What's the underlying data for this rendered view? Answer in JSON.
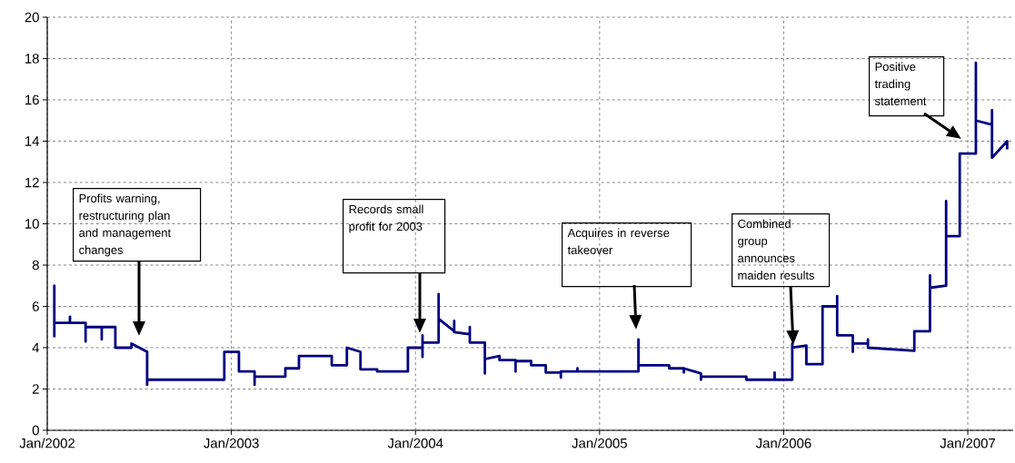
{
  "chart_data": {
    "type": "line",
    "x": [
      "2002-01-15",
      "2002-01-15",
      "2002-01-15",
      "2002-02-15",
      "2002-02-15",
      "2002-02-15",
      "2002-03-18",
      "2002-03-18",
      "2002-03-18",
      "2002-04-19",
      "2002-04-19",
      "2002-04-19",
      "2002-05-16",
      "2002-05-16",
      "2002-06-17",
      "2002-06-17",
      "2002-07-18",
      "2002-07-18",
      "2002-07-18",
      "2002-12-18",
      "2002-12-18",
      "2003-01-16",
      "2003-01-16",
      "2003-02-16",
      "2003-02-16",
      "2003-02-16",
      "2003-04-18",
      "2003-04-18",
      "2003-05-15",
      "2003-05-15",
      "2003-07-19",
      "2003-07-19",
      "2003-08-18",
      "2003-08-18",
      "2003-09-14",
      "2003-09-14",
      "2003-10-17",
      "2003-10-17",
      "2003-12-17",
      "2003-12-17",
      "2004-01-15",
      "2004-01-15",
      "2004-01-15",
      "2004-01-15",
      "2004-02-16",
      "2004-02-16",
      "2004-02-16",
      "2004-03-18",
      "2004-03-18",
      "2004-03-18",
      "2004-04-18",
      "2004-04-18",
      "2004-04-18",
      "2004-05-18",
      "2004-05-18",
      "2004-05-18",
      "2004-06-16",
      "2004-06-16",
      "2004-07-18",
      "2004-07-18",
      "2004-07-18",
      "2004-08-18",
      "2004-08-18",
      "2004-09-16",
      "2004-09-16",
      "2004-10-16",
      "2004-10-16",
      "2004-10-16",
      "2004-11-18",
      "2004-11-18",
      "2004-11-18",
      "2005-03-19",
      "2005-03-19",
      "2005-03-19",
      "2005-05-19",
      "2005-05-19",
      "2005-06-17",
      "2005-06-17",
      "2005-06-17",
      "2005-07-21",
      "2005-07-21",
      "2005-07-21",
      "2005-10-19",
      "2005-10-19",
      "2005-12-14",
      "2005-12-14",
      "2005-12-14",
      "2006-01-18",
      "2006-01-18",
      "2006-01-18",
      "2006-01-18",
      "2006-02-15",
      "2006-02-15",
      "2006-03-19",
      "2006-03-19",
      "2006-04-17",
      "2006-04-17",
      "2006-04-17",
      "2006-05-18",
      "2006-05-18",
      "2006-05-18",
      "2006-06-17",
      "2006-06-17",
      "2006-06-17",
      "2006-09-17",
      "2006-09-17",
      "2006-10-18",
      "2006-10-18",
      "2006-10-18",
      "2006-11-19",
      "2006-11-19",
      "2006-11-19",
      "2006-12-16",
      "2006-12-16",
      "2007-01-17",
      "2007-01-17",
      "2007-01-17",
      "2007-02-18",
      "2007-02-18",
      "2007-02-18",
      "2007-03-20",
      "2007-03-20"
    ],
    "values": [
      4.5,
      7.0,
      5.2,
      5.2,
      5.5,
      5.2,
      5.2,
      4.3,
      5.0,
      5.0,
      4.4,
      5.0,
      5.0,
      4.0,
      4.0,
      4.2,
      3.8,
      2.2,
      2.45,
      2.45,
      3.8,
      3.8,
      2.85,
      2.85,
      2.2,
      2.6,
      2.6,
      3.0,
      3.0,
      3.6,
      3.6,
      3.15,
      3.15,
      4.0,
      3.8,
      2.95,
      2.95,
      2.85,
      2.85,
      4.0,
      4.0,
      4.6,
      3.55,
      4.25,
      4.25,
      6.6,
      5.4,
      4.8,
      5.3,
      4.75,
      4.65,
      5.0,
      4.25,
      4.25,
      2.75,
      3.45,
      3.6,
      3.4,
      3.4,
      2.85,
      3.35,
      3.35,
      3.15,
      3.15,
      2.8,
      2.8,
      2.55,
      2.85,
      2.85,
      3.0,
      2.85,
      2.85,
      4.4,
      3.15,
      3.15,
      3.0,
      3.0,
      2.8,
      3.0,
      2.75,
      2.45,
      2.6,
      2.6,
      2.45,
      2.45,
      2.8,
      2.45,
      2.45,
      4.0,
      4.2,
      4.0,
      4.1,
      3.2,
      3.2,
      6.0,
      6.0,
      6.5,
      4.6,
      4.6,
      3.8,
      4.2,
      4.2,
      4.4,
      4.0,
      3.85,
      4.8,
      4.8,
      7.5,
      6.9,
      7.0,
      11.1,
      9.4,
      9.4,
      13.4,
      13.4,
      17.8,
      15.0,
      14.8,
      15.5,
      13.2,
      14.0,
      13.6
    ],
    "color": "#000080",
    "xlim": [
      "2002-01-01",
      "2007-04-01"
    ],
    "xticks": [
      {
        "value": "2002-01-01",
        "label": "Jan/2002"
      },
      {
        "value": "2003-01-01",
        "label": "Jan/2003"
      },
      {
        "value": "2004-01-01",
        "label": "Jan/2004"
      },
      {
        "value": "2005-01-01",
        "label": "Jan/2005"
      },
      {
        "value": "2006-01-01",
        "label": "Jan/2006"
      },
      {
        "value": "2007-01-01",
        "label": "Jan/2007"
      }
    ],
    "ylim": [
      0,
      20
    ],
    "yticks": [
      0,
      2,
      4,
      6,
      8,
      10,
      12,
      14,
      16,
      18,
      20
    ],
    "grid": true,
    "annotations": [
      "Profits warning, restructuring plan and management changes",
      "Records small profit for 2003",
      "Acquires in reverse takeover",
      "Combined group announces maiden results",
      "Positive trading statement"
    ]
  }
}
